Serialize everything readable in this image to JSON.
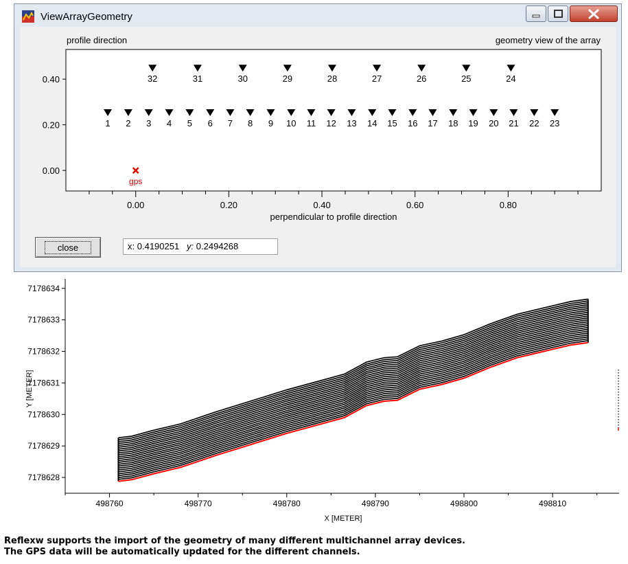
{
  "window": {
    "title": "ViewArrayGeometry",
    "controls": [
      "minimize",
      "maximize",
      "close"
    ],
    "accent_colors": {
      "close_button": "#c1412d",
      "frame": "#e2e9f1"
    }
  },
  "geometry_view": {
    "left_header": "profile direction",
    "right_header": "geometry view of the array",
    "x_axis_label": "perpendicular to profile direction",
    "x_ticks": [
      "0.00",
      "0.20",
      "0.40",
      "0.60",
      "0.80"
    ],
    "y_ticks": [
      "0.00",
      "0.20",
      "0.40"
    ],
    "gps_label": "gps",
    "gps_color": "#e00000",
    "close_label": "close",
    "readout": {
      "x_label": "x:",
      "x_value": "0.4190251",
      "y_label": "y:",
      "y_value": "0.2494268"
    }
  },
  "chart_data": [
    {
      "type": "scatter",
      "title": "geometry view of the array",
      "xlabel": "perpendicular to profile direction",
      "ylabel": "",
      "xlim": [
        -0.15,
        1.0
      ],
      "ylim": [
        -0.09,
        0.53
      ],
      "series": [
        {
          "name": "",
          "marker": "triangle-down",
          "points": [
            {
              "label": "1",
              "x": -0.06,
              "y": 0.25
            },
            {
              "label": "2",
              "x": -0.016,
              "y": 0.25
            },
            {
              "label": "3",
              "x": 0.028,
              "y": 0.25
            },
            {
              "label": "4",
              "x": 0.072,
              "y": 0.25
            },
            {
              "label": "5",
              "x": 0.116,
              "y": 0.25
            },
            {
              "label": "6",
              "x": 0.16,
              "y": 0.25
            },
            {
              "label": "7",
              "x": 0.203,
              "y": 0.25
            },
            {
              "label": "8",
              "x": 0.246,
              "y": 0.25
            },
            {
              "label": "9",
              "x": 0.29,
              "y": 0.25
            },
            {
              "label": "10",
              "x": 0.334,
              "y": 0.25
            },
            {
              "label": "11",
              "x": 0.377,
              "y": 0.25
            },
            {
              "label": "12",
              "x": 0.42,
              "y": 0.25
            },
            {
              "label": "13",
              "x": 0.464,
              "y": 0.25
            },
            {
              "label": "14",
              "x": 0.508,
              "y": 0.25
            },
            {
              "label": "15",
              "x": 0.551,
              "y": 0.25
            },
            {
              "label": "16",
              "x": 0.595,
              "y": 0.25
            },
            {
              "label": "17",
              "x": 0.638,
              "y": 0.25
            },
            {
              "label": "18",
              "x": 0.682,
              "y": 0.25
            },
            {
              "label": "19",
              "x": 0.725,
              "y": 0.25
            },
            {
              "label": "20",
              "x": 0.769,
              "y": 0.25
            },
            {
              "label": "21",
              "x": 0.812,
              "y": 0.25
            },
            {
              "label": "22",
              "x": 0.856,
              "y": 0.25
            },
            {
              "label": "23",
              "x": 0.9,
              "y": 0.25
            },
            {
              "label": "24",
              "x": 0.806,
              "y": 0.445
            },
            {
              "label": "25",
              "x": 0.71,
              "y": 0.445
            },
            {
              "label": "26",
              "x": 0.614,
              "y": 0.445
            },
            {
              "label": "27",
              "x": 0.518,
              "y": 0.445
            },
            {
              "label": "28",
              "x": 0.422,
              "y": 0.445
            },
            {
              "label": "29",
              "x": 0.326,
              "y": 0.445
            },
            {
              "label": "30",
              "x": 0.23,
              "y": 0.445
            },
            {
              "label": "31",
              "x": 0.133,
              "y": 0.445
            },
            {
              "label": "32",
              "x": 0.036,
              "y": 0.445
            }
          ]
        },
        {
          "name": "",
          "marker": "x",
          "color": "#e00000",
          "points": [
            {
              "label": "gps",
              "x": 0.0,
              "y": 0.0
            }
          ]
        }
      ]
    },
    {
      "type": "line",
      "title": "",
      "xlabel": "X [METER]",
      "ylabel": "Y [METER]",
      "xlim": [
        498755,
        498817.5
      ],
      "ylim": [
        7178627.5,
        7178634.3
      ],
      "x_ticks": [
        "498760",
        "498770",
        "498780",
        "498790",
        "498800",
        "498810"
      ],
      "y_ticks": [
        "7178628",
        "7178629",
        "7178630",
        "7178631",
        "7178632",
        "7178633",
        "7178634"
      ],
      "channel_count": 23,
      "channel_spacing": 0.06,
      "profile": {
        "x": [
          498761.0,
          498762.5,
          498765.0,
          498768.0,
          498772.0,
          498776.0,
          498780.0,
          498783.0,
          498786.5,
          498789.0,
          498791.0,
          498792.5,
          498795.0,
          498797.5,
          498800.0,
          498803.0,
          498806.0,
          498809.0,
          498812.0,
          498814.0
        ],
        "y": [
          7178627.88,
          7178627.93,
          7178628.12,
          7178628.32,
          7178628.7,
          7178629.05,
          7178629.4,
          7178629.63,
          7178629.9,
          7178630.28,
          7178630.42,
          7178630.45,
          7178630.8,
          7178630.95,
          7178631.15,
          7178631.5,
          7178631.8,
          7178632.0,
          7178632.2,
          7178632.28
        ]
      },
      "gps_line_color": "#ff0000"
    }
  ],
  "caption": [
    "Reflexw supports the import of the geometry of many different multichannel array devices.",
    "The GPS data will be automatically updated for the different channels."
  ]
}
